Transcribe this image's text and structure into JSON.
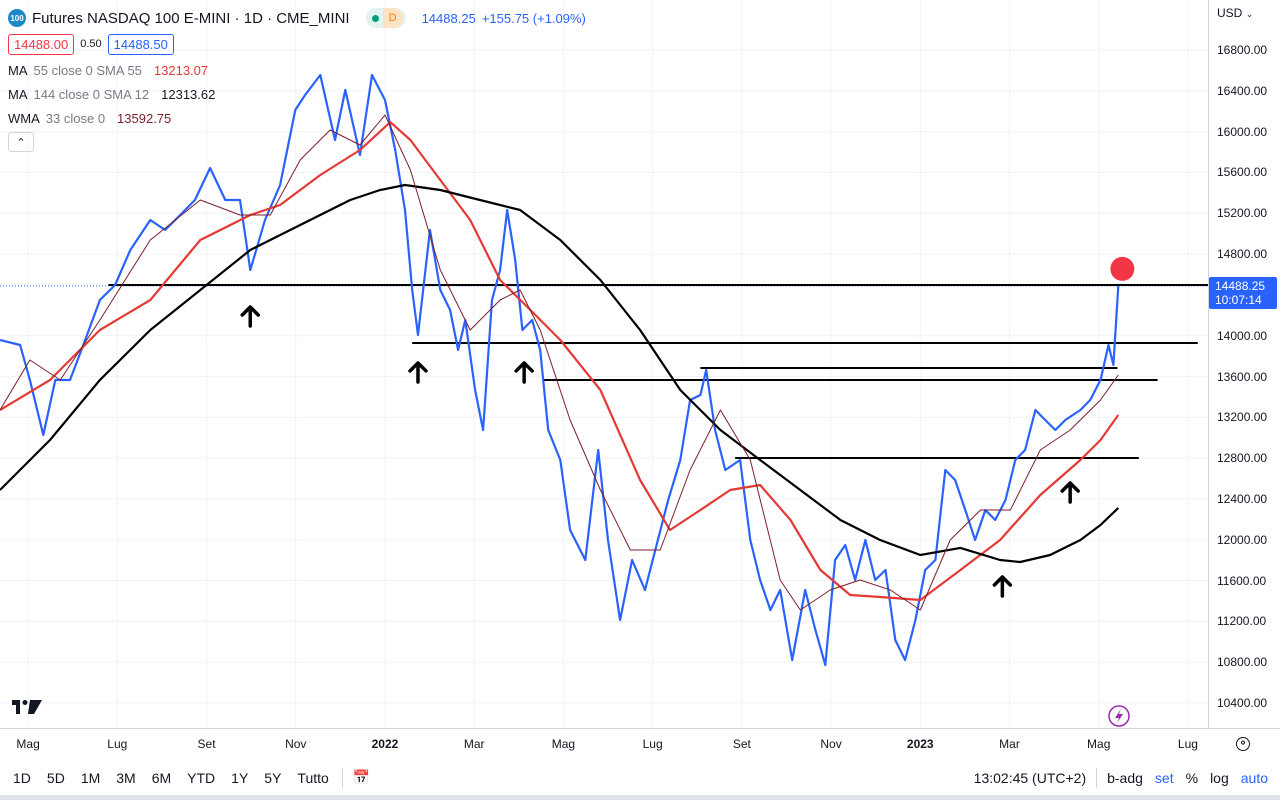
{
  "header": {
    "symbol_badge": "100",
    "title": "Futures NASDAQ 100 E-MINI · 1D · CME_MINI",
    "market_status_badge": "D",
    "last": "14488.25",
    "change": "+155.75 (+1.09%)",
    "bid": "14488.00",
    "spread": "0.50",
    "ask": "14488.50"
  },
  "indicators": [
    {
      "name": "MA",
      "params": "55 close 0 SMA 55",
      "value": "13213.07",
      "color": "#e53935"
    },
    {
      "name": "MA",
      "params": "144 close 0 SMA 12",
      "value": "12313.62",
      "color": "#131722"
    },
    {
      "name": "WMA",
      "params": "33 close 0",
      "value": "13592.75",
      "color": "#7b1f2a"
    }
  ],
  "price_axis": {
    "currency": "USD",
    "last_label": "14488.25",
    "countdown": "10:07:14"
  },
  "bottom": {
    "timeframes": [
      "1D",
      "5D",
      "1M",
      "3M",
      "6M",
      "YTD",
      "1Y",
      "5Y",
      "Tutto"
    ],
    "time": "13:02:45 (UTC+2)",
    "toggles": [
      "b-adg",
      "set",
      "%",
      "log",
      "auto"
    ]
  },
  "chart_data": {
    "type": "line",
    "title": "Futures NASDAQ 100 E-MINI · 1D · CME_MINI",
    "x_unit": "months since May 2021",
    "xlim": [
      -0.63,
      26.45
    ],
    "ylim": [
      10260,
      16960
    ],
    "y_ticks": [
      16800,
      16400,
      16000,
      15600,
      15200,
      14800,
      14000,
      13600,
      13200,
      12800,
      12400,
      12000,
      11600,
      11200,
      10800,
      10400
    ],
    "y_tick_labels": [
      "16800.00",
      "16400.00",
      "16000.00",
      "15600.00",
      "15200.00",
      "14800.00",
      "14000.00",
      "13600.00",
      "13200.00",
      "12800.00",
      "12400.00",
      "12000.00",
      "11600.00",
      "11200.00",
      "10800.00",
      "10400.00"
    ],
    "x_ticks": [
      {
        "m": 0,
        "label": "Mag"
      },
      {
        "m": 2,
        "label": "Lug"
      },
      {
        "m": 4,
        "label": "Set"
      },
      {
        "m": 6,
        "label": "Nov"
      },
      {
        "m": 8,
        "label": "2022",
        "bold": true
      },
      {
        "m": 10,
        "label": "Mar"
      },
      {
        "m": 12,
        "label": "Mag"
      },
      {
        "m": 14,
        "label": "Lug"
      },
      {
        "m": 16,
        "label": "Set"
      },
      {
        "m": 18,
        "label": "Nov"
      },
      {
        "m": 20,
        "label": "2023",
        "bold": true
      },
      {
        "m": 22,
        "label": "Mar"
      },
      {
        "m": 24,
        "label": "Mag"
      },
      {
        "m": 26,
        "label": "Lug"
      }
    ],
    "grid": true,
    "series": [
      {
        "name": "Price",
        "color": "#2962ff",
        "width": 2.2,
        "points": [
          [
            -0.63,
            13958
          ],
          [
            -0.18,
            13909
          ],
          [
            0.04,
            13566
          ],
          [
            0.34,
            13027
          ],
          [
            0.61,
            13566
          ],
          [
            0.94,
            13566
          ],
          [
            1.28,
            13958
          ],
          [
            1.61,
            14350
          ],
          [
            1.95,
            14497
          ],
          [
            2.29,
            14840
          ],
          [
            2.74,
            15134
          ],
          [
            3.07,
            15036
          ],
          [
            3.41,
            15183
          ],
          [
            3.74,
            15330
          ],
          [
            4.08,
            15644
          ],
          [
            4.42,
            15330
          ],
          [
            4.75,
            15330
          ],
          [
            4.98,
            14644
          ],
          [
            5.31,
            15134
          ],
          [
            5.65,
            15477
          ],
          [
            5.99,
            16212
          ],
          [
            6.21,
            16359
          ],
          [
            6.55,
            16555
          ],
          [
            6.88,
            15918
          ],
          [
            7.11,
            16408
          ],
          [
            7.44,
            15771
          ],
          [
            7.71,
            16555
          ],
          [
            8.0,
            16310
          ],
          [
            8.23,
            15820
          ],
          [
            8.45,
            15232
          ],
          [
            8.61,
            14448
          ],
          [
            8.74,
            14007
          ],
          [
            9.01,
            15036
          ],
          [
            9.24,
            14448
          ],
          [
            9.46,
            14252
          ],
          [
            9.64,
            13860
          ],
          [
            9.8,
            14154
          ],
          [
            10.02,
            13468
          ],
          [
            10.2,
            13076
          ],
          [
            10.4,
            14350
          ],
          [
            10.58,
            14644
          ],
          [
            10.74,
            15232
          ],
          [
            10.92,
            14742
          ],
          [
            11.08,
            14056
          ],
          [
            11.3,
            14154
          ],
          [
            11.48,
            13860
          ],
          [
            11.66,
            13076
          ],
          [
            11.93,
            12782
          ],
          [
            12.15,
            12096
          ],
          [
            12.49,
            11802
          ],
          [
            12.78,
            12880
          ],
          [
            13.0,
            11998
          ],
          [
            13.27,
            11214
          ],
          [
            13.54,
            11802
          ],
          [
            13.83,
            11508
          ],
          [
            14.06,
            11900
          ],
          [
            14.35,
            12390
          ],
          [
            14.62,
            12782
          ],
          [
            14.84,
            13370
          ],
          [
            15.07,
            13419
          ],
          [
            15.2,
            13664
          ],
          [
            15.4,
            13076
          ],
          [
            15.63,
            12684
          ],
          [
            15.96,
            12782
          ],
          [
            16.19,
            11998
          ],
          [
            16.41,
            11606
          ],
          [
            16.64,
            11312
          ],
          [
            16.86,
            11508
          ],
          [
            17.13,
            10822
          ],
          [
            17.42,
            11508
          ],
          [
            17.65,
            11116
          ],
          [
            17.87,
            10773
          ],
          [
            18.09,
            11802
          ],
          [
            18.32,
            11949
          ],
          [
            18.54,
            11606
          ],
          [
            18.77,
            11998
          ],
          [
            18.99,
            11606
          ],
          [
            19.22,
            11704
          ],
          [
            19.44,
            11018
          ],
          [
            19.66,
            10822
          ],
          [
            19.89,
            11214
          ],
          [
            20.11,
            11704
          ],
          [
            20.34,
            11802
          ],
          [
            20.56,
            12684
          ],
          [
            20.78,
            12586
          ],
          [
            21.01,
            12292
          ],
          [
            21.23,
            11998
          ],
          [
            21.46,
            12292
          ],
          [
            21.68,
            12194
          ],
          [
            21.91,
            12390
          ],
          [
            22.13,
            12782
          ],
          [
            22.35,
            12880
          ],
          [
            22.58,
            13272
          ],
          [
            22.8,
            13174
          ],
          [
            23.03,
            13076
          ],
          [
            23.25,
            13174
          ],
          [
            23.59,
            13272
          ],
          [
            23.81,
            13370
          ],
          [
            24.04,
            13566
          ],
          [
            24.22,
            13909
          ],
          [
            24.33,
            13713
          ],
          [
            24.44,
            14488
          ]
        ]
      },
      {
        "name": "MA 55",
        "color": "#e53935",
        "width": 2.2,
        "points": [
          [
            -0.63,
            13272
          ],
          [
            0.49,
            13566
          ],
          [
            1.61,
            14056
          ],
          [
            2.74,
            14350
          ],
          [
            3.86,
            14938
          ],
          [
            4.98,
            15183
          ],
          [
            5.65,
            15281
          ],
          [
            6.55,
            15575
          ],
          [
            7.44,
            15820
          ],
          [
            8.12,
            16094
          ],
          [
            8.57,
            15918
          ],
          [
            9.24,
            15526
          ],
          [
            9.91,
            15134
          ],
          [
            10.58,
            14546
          ],
          [
            11.26,
            14252
          ],
          [
            11.93,
            13958
          ],
          [
            12.83,
            13468
          ],
          [
            13.72,
            12586
          ],
          [
            14.39,
            12096
          ],
          [
            15.07,
            12292
          ],
          [
            15.74,
            12488
          ],
          [
            16.41,
            12537
          ],
          [
            17.09,
            12194
          ],
          [
            17.76,
            11704
          ],
          [
            18.43,
            11459
          ],
          [
            19.1,
            11439
          ],
          [
            20.0,
            11410
          ],
          [
            20.9,
            11704
          ],
          [
            21.79,
            11998
          ],
          [
            22.69,
            12439
          ],
          [
            23.59,
            12782
          ],
          [
            24.04,
            12978
          ],
          [
            24.44,
            13223
          ]
        ]
      },
      {
        "name": "MA 144",
        "color": "#000000",
        "width": 2.2,
        "points": [
          [
            -0.63,
            12488
          ],
          [
            0.49,
            12978
          ],
          [
            1.61,
            13566
          ],
          [
            2.74,
            14056
          ],
          [
            3.86,
            14448
          ],
          [
            4.98,
            14840
          ],
          [
            6.1,
            15085
          ],
          [
            7.22,
            15330
          ],
          [
            7.89,
            15428
          ],
          [
            8.45,
            15477
          ],
          [
            9.24,
            15428
          ],
          [
            10.13,
            15330
          ],
          [
            11.03,
            15232
          ],
          [
            11.93,
            14938
          ],
          [
            12.83,
            14546
          ],
          [
            13.72,
            14056
          ],
          [
            14.62,
            13468
          ],
          [
            15.52,
            13076
          ],
          [
            16.41,
            12782
          ],
          [
            17.31,
            12488
          ],
          [
            18.21,
            12194
          ],
          [
            19.1,
            11998
          ],
          [
            20.0,
            11851
          ],
          [
            20.9,
            11920
          ],
          [
            21.79,
            11802
          ],
          [
            22.24,
            11782
          ],
          [
            22.91,
            11851
          ],
          [
            23.59,
            11998
          ],
          [
            24.04,
            12145
          ],
          [
            24.44,
            12312
          ]
        ]
      },
      {
        "name": "WMA 33",
        "color": "#7b1f2a",
        "width": 1,
        "points": [
          [
            -0.63,
            13272
          ],
          [
            0.04,
            13762
          ],
          [
            0.72,
            13566
          ],
          [
            1.61,
            14154
          ],
          [
            2.74,
            14938
          ],
          [
            3.86,
            15330
          ],
          [
            4.75,
            15183
          ],
          [
            5.43,
            15183
          ],
          [
            6.1,
            15722
          ],
          [
            6.77,
            16016
          ],
          [
            7.44,
            15869
          ],
          [
            8.0,
            16163
          ],
          [
            8.57,
            15624
          ],
          [
            9.24,
            14644
          ],
          [
            9.91,
            14056
          ],
          [
            10.58,
            14350
          ],
          [
            11.03,
            14448
          ],
          [
            11.48,
            14056
          ],
          [
            12.15,
            13174
          ],
          [
            12.83,
            12488
          ],
          [
            13.5,
            11900
          ],
          [
            14.17,
            11900
          ],
          [
            14.84,
            12684
          ],
          [
            15.52,
            13272
          ],
          [
            16.19,
            12782
          ],
          [
            16.86,
            11606
          ],
          [
            17.31,
            11312
          ],
          [
            17.98,
            11508
          ],
          [
            18.65,
            11606
          ],
          [
            19.33,
            11508
          ],
          [
            20.0,
            11312
          ],
          [
            20.67,
            11998
          ],
          [
            21.35,
            12292
          ],
          [
            22.02,
            12292
          ],
          [
            22.69,
            12880
          ],
          [
            23.36,
            13076
          ],
          [
            24.04,
            13370
          ],
          [
            24.44,
            13615
          ]
        ]
      }
    ],
    "annotations": {
      "last_price_line": 14488,
      "h_lines": [
        {
          "price": 14497,
          "from": 1.8,
          "to": 26.45
        },
        {
          "price": 13929,
          "from": 8.61,
          "to": 26.22
        },
        {
          "price": 13684,
          "from": 15.07,
          "to": 24.42
        },
        {
          "price": 13566,
          "from": 11.53,
          "to": 25.32
        },
        {
          "price": 12802,
          "from": 15.85,
          "to": 24.9
        }
      ],
      "up_arrows": [
        [
          4.98,
          14232
        ],
        [
          8.74,
          13684
        ],
        [
          11.12,
          13684
        ],
        [
          21.84,
          11586
        ],
        [
          23.36,
          12507
        ]
      ],
      "red_dot": [
        24.53,
        14655
      ]
    }
  }
}
